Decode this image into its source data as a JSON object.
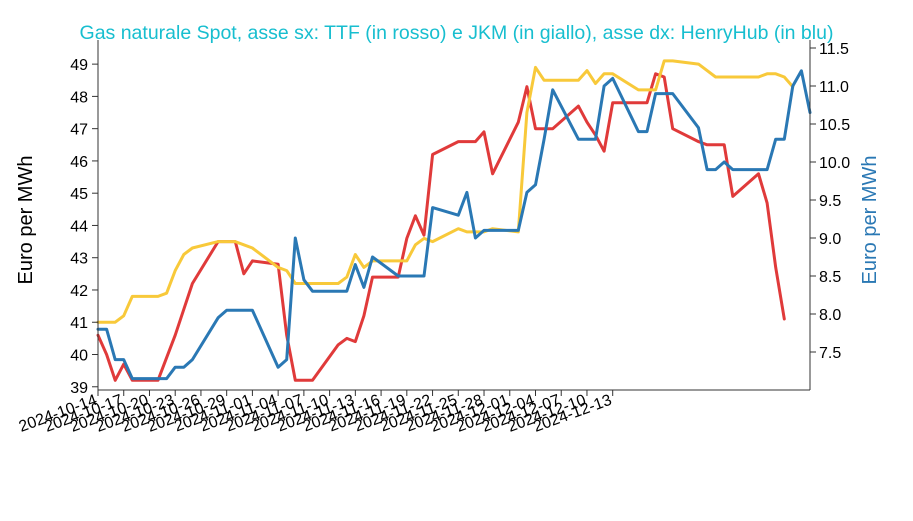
{
  "chart_data": {
    "type": "line",
    "title": "Gas naturale Spot, asse sx: TTF (in rosso) e JKM (in giallo), asse dx: HenryHub (in blu)",
    "ylabel_left": "Euro per MWh",
    "ylabel_right": "Euro per MWh",
    "ylim_left": [
      38.9,
      49.5
    ],
    "ylim_right": [
      7.0,
      11.5
    ],
    "yticks_left": [
      39,
      40,
      41,
      42,
      43,
      44,
      45,
      46,
      47,
      48,
      49
    ],
    "yticks_right": [
      "7.5",
      "8.0",
      "8.5",
      "9.0",
      "9.5",
      "10.0",
      "10.5",
      "11.0",
      "11.5"
    ],
    "x_tick_labels": [
      "2024-10-14",
      "2024-10-17",
      "2024-10-20",
      "2024-10-23",
      "2024-10-26",
      "2024-10-29",
      "2024-11-01",
      "2024-11-04",
      "2024-11-07",
      "2024-11-10",
      "2024-11-13",
      "2024-11-16",
      "2024-11-19",
      "2024-11-22",
      "2024-11-25",
      "2024-11-28",
      "2024-12-01",
      "2024-12-04",
      "2024-12-07",
      "2024-12-10",
      "2024-12-13"
    ],
    "grid": false,
    "legend": "none",
    "colors": {
      "TTF": "#e03a3a",
      "JKM": "#f8c93a",
      "HenryHub": "#2a78b4",
      "title": "#17becf"
    },
    "series": [
      {
        "axis": "left",
        "color_key": "TTF",
        "points": [
          [
            "2024-10-14",
            40.6
          ],
          [
            "2024-10-15",
            40.0
          ],
          [
            "2024-10-16",
            39.2
          ],
          [
            "2024-10-17",
            39.7
          ],
          [
            "2024-10-18",
            39.2
          ],
          [
            "2024-10-21",
            39.2
          ],
          [
            "2024-10-22",
            39.9
          ],
          [
            "2024-10-23",
            40.6
          ],
          [
            "2024-10-24",
            41.4
          ],
          [
            "2024-10-25",
            42.2
          ],
          [
            "2024-10-28",
            43.5
          ],
          [
            "2024-10-29",
            43.5
          ],
          [
            "2024-10-30",
            43.5
          ],
          [
            "2024-10-31",
            42.5
          ],
          [
            "2024-11-01",
            42.9
          ],
          [
            "2024-11-04",
            42.8
          ],
          [
            "2024-11-05",
            40.6
          ],
          [
            "2024-11-06",
            39.2
          ],
          [
            "2024-11-07",
            39.2
          ],
          [
            "2024-11-08",
            39.2
          ],
          [
            "2024-11-11",
            40.3
          ],
          [
            "2024-11-12",
            40.5
          ],
          [
            "2024-11-13",
            40.4
          ],
          [
            "2024-11-14",
            41.2
          ],
          [
            "2024-11-15",
            42.4
          ],
          [
            "2024-11-18",
            42.4
          ],
          [
            "2024-11-19",
            43.6
          ],
          [
            "2024-11-20",
            44.3
          ],
          [
            "2024-11-21",
            43.7
          ],
          [
            "2024-11-22",
            46.2
          ],
          [
            "2024-11-25",
            46.6
          ],
          [
            "2024-11-26",
            46.6
          ],
          [
            "2024-11-27",
            46.6
          ],
          [
            "2024-11-28",
            46.9
          ],
          [
            "2024-11-29",
            45.6
          ],
          [
            "2024-12-02",
            47.2
          ],
          [
            "2024-12-03",
            48.3
          ],
          [
            "2024-12-04",
            47.0
          ],
          [
            "2024-12-05",
            47.0
          ],
          [
            "2024-12-06",
            47.0
          ],
          [
            "2024-12-09",
            47.7
          ],
          [
            "2024-12-10",
            47.2
          ],
          [
            "2024-12-11",
            46.8
          ],
          [
            "2024-12-12",
            46.3
          ],
          [
            "2024-12-13",
            47.8
          ],
          [
            "2024-12-16",
            47.8
          ],
          [
            "2024-12-17",
            47.8
          ],
          [
            "2024-12-18",
            48.7
          ],
          [
            "2024-12-19",
            48.6
          ],
          [
            "2024-12-20",
            47.0
          ],
          [
            "2024-12-23",
            46.6
          ],
          [
            "2024-12-24",
            46.5
          ],
          [
            "2024-12-25",
            46.5
          ],
          [
            "2024-12-26",
            46.5
          ],
          [
            "2024-12-27",
            44.9
          ],
          [
            "2024-12-30",
            45.6
          ],
          [
            "2024-12-31",
            44.7
          ],
          [
            "2025-01-01",
            42.7
          ],
          [
            "2025-01-02",
            41.1
          ]
        ]
      },
      {
        "axis": "left",
        "color_key": "JKM",
        "points": [
          [
            "2024-10-14",
            41.0
          ],
          [
            "2024-10-15",
            41.0
          ],
          [
            "2024-10-16",
            41.0
          ],
          [
            "2024-10-17",
            41.2
          ],
          [
            "2024-10-18",
            41.8
          ],
          [
            "2024-10-21",
            41.8
          ],
          [
            "2024-10-22",
            41.9
          ],
          [
            "2024-10-23",
            42.6
          ],
          [
            "2024-10-24",
            43.1
          ],
          [
            "2024-10-25",
            43.3
          ],
          [
            "2024-10-28",
            43.5
          ],
          [
            "2024-10-29",
            43.5
          ],
          [
            "2024-10-30",
            43.5
          ],
          [
            "2024-10-31",
            43.4
          ],
          [
            "2024-11-01",
            43.3
          ],
          [
            "2024-11-04",
            42.7
          ],
          [
            "2024-11-05",
            42.6
          ],
          [
            "2024-11-06",
            42.2
          ],
          [
            "2024-11-07",
            42.2
          ],
          [
            "2024-11-08",
            42.2
          ],
          [
            "2024-11-11",
            42.2
          ],
          [
            "2024-11-12",
            42.4
          ],
          [
            "2024-11-13",
            43.1
          ],
          [
            "2024-11-14",
            42.7
          ],
          [
            "2024-11-15",
            42.9
          ],
          [
            "2024-11-18",
            42.9
          ],
          [
            "2024-11-19",
            42.9
          ],
          [
            "2024-11-20",
            43.4
          ],
          [
            "2024-11-21",
            43.6
          ],
          [
            "2024-11-22",
            43.5
          ],
          [
            "2024-11-25",
            43.9
          ],
          [
            "2024-11-26",
            43.8
          ],
          [
            "2024-11-27",
            43.8
          ],
          [
            "2024-11-28",
            43.8
          ],
          [
            "2024-11-29",
            43.9
          ],
          [
            "2024-12-02",
            43.8
          ],
          [
            "2024-12-03",
            47.5
          ],
          [
            "2024-12-04",
            48.9
          ],
          [
            "2024-12-05",
            48.5
          ],
          [
            "2024-12-06",
            48.5
          ],
          [
            "2024-12-09",
            48.5
          ],
          [
            "2024-12-10",
            48.8
          ],
          [
            "2024-12-11",
            48.4
          ],
          [
            "2024-12-12",
            48.7
          ],
          [
            "2024-12-13",
            48.7
          ],
          [
            "2024-12-16",
            48.2
          ],
          [
            "2024-12-17",
            48.2
          ],
          [
            "2024-12-18",
            48.2
          ],
          [
            "2024-12-19",
            49.1
          ],
          [
            "2024-12-20",
            49.1
          ],
          [
            "2024-12-23",
            49.0
          ],
          [
            "2024-12-24",
            48.8
          ],
          [
            "2024-12-25",
            48.6
          ],
          [
            "2024-12-26",
            48.6
          ],
          [
            "2024-12-27",
            48.6
          ],
          [
            "2024-12-30",
            48.6
          ],
          [
            "2024-12-31",
            48.7
          ],
          [
            "2025-01-01",
            48.7
          ],
          [
            "2025-01-02",
            48.6
          ],
          [
            "2025-01-03",
            48.3
          ]
        ]
      },
      {
        "axis": "right",
        "color_key": "HenryHub",
        "points": [
          [
            "2024-10-14",
            7.8
          ],
          [
            "2024-10-15",
            7.8
          ],
          [
            "2024-10-16",
            7.4
          ],
          [
            "2024-10-17",
            7.4
          ],
          [
            "2024-10-18",
            7.15
          ],
          [
            "2024-10-21",
            7.15
          ],
          [
            "2024-10-22",
            7.15
          ],
          [
            "2024-10-23",
            7.3
          ],
          [
            "2024-10-24",
            7.3
          ],
          [
            "2024-10-25",
            7.4
          ],
          [
            "2024-10-28",
            7.95
          ],
          [
            "2024-10-29",
            8.05
          ],
          [
            "2024-10-30",
            8.05
          ],
          [
            "2024-10-31",
            8.05
          ],
          [
            "2024-11-01",
            8.05
          ],
          [
            "2024-11-04",
            7.3
          ],
          [
            "2024-11-05",
            7.4
          ],
          [
            "2024-11-06",
            9.0
          ],
          [
            "2024-11-07",
            8.45
          ],
          [
            "2024-11-08",
            8.3
          ],
          [
            "2024-11-11",
            8.3
          ],
          [
            "2024-11-12",
            8.3
          ],
          [
            "2024-11-13",
            8.65
          ],
          [
            "2024-11-14",
            8.35
          ],
          [
            "2024-11-15",
            8.75
          ],
          [
            "2024-11-18",
            8.5
          ],
          [
            "2024-11-19",
            8.5
          ],
          [
            "2024-11-20",
            8.5
          ],
          [
            "2024-11-21",
            8.5
          ],
          [
            "2024-11-22",
            9.4
          ],
          [
            "2024-11-25",
            9.3
          ],
          [
            "2024-11-26",
            9.6
          ],
          [
            "2024-11-27",
            9.0
          ],
          [
            "2024-11-28",
            9.1
          ],
          [
            "2024-11-29",
            9.1
          ],
          [
            "2024-12-02",
            9.1
          ],
          [
            "2024-12-03",
            9.6
          ],
          [
            "2024-12-04",
            9.7
          ],
          [
            "2024-12-05",
            10.3
          ],
          [
            "2024-12-06",
            10.95
          ],
          [
            "2024-12-09",
            10.3
          ],
          [
            "2024-12-10",
            10.3
          ],
          [
            "2024-12-11",
            10.3
          ],
          [
            "2024-12-12",
            11.0
          ],
          [
            "2024-12-13",
            11.1
          ],
          [
            "2024-12-16",
            10.4
          ],
          [
            "2024-12-17",
            10.4
          ],
          [
            "2024-12-18",
            10.9
          ],
          [
            "2024-12-19",
            10.9
          ],
          [
            "2024-12-20",
            10.9
          ],
          [
            "2024-12-23",
            10.45
          ],
          [
            "2024-12-24",
            9.9
          ],
          [
            "2024-12-25",
            9.9
          ],
          [
            "2024-12-26",
            10.0
          ],
          [
            "2024-12-27",
            9.9
          ],
          [
            "2024-12-30",
            9.9
          ],
          [
            "2024-12-31",
            9.9
          ],
          [
            "2025-01-01",
            10.3
          ],
          [
            "2025-01-02",
            10.3
          ],
          [
            "2025-01-03",
            11.0
          ],
          [
            "2025-01-04",
            11.2
          ],
          [
            "2025-01-05",
            10.65
          ]
        ]
      }
    ]
  }
}
